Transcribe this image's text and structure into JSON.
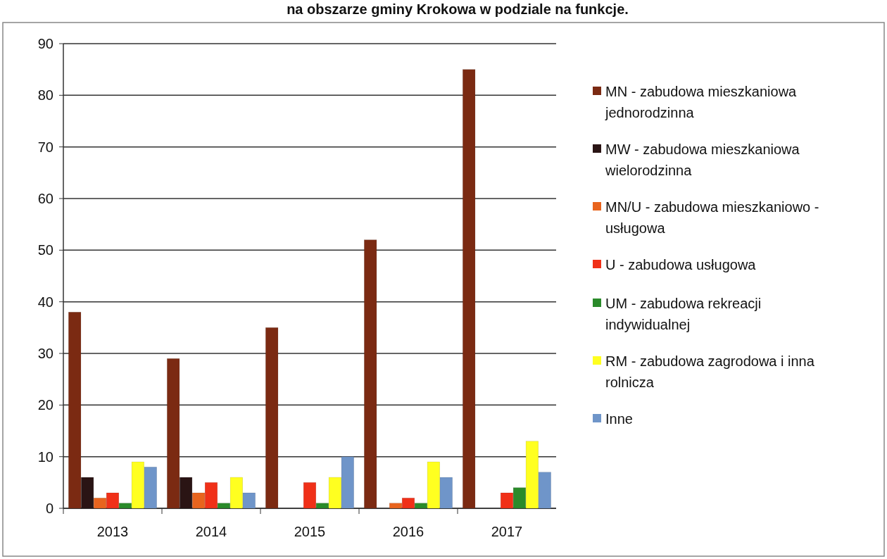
{
  "chart_data": {
    "type": "bar",
    "title": "na obszarze gminy Krokowa w podziale na funkcje.",
    "categories": [
      "2013",
      "2014",
      "2015",
      "2016",
      "2017"
    ],
    "series": [
      {
        "name": "MN - zabudowa mieszkaniowa jednorodzinna",
        "color": "#7b2a12",
        "values": [
          38,
          29,
          35,
          52,
          85
        ]
      },
      {
        "name": "MW - zabudowa mieszkaniowa wielorodzinna",
        "color": "#2a1414",
        "values": [
          6,
          6,
          0,
          0,
          0
        ]
      },
      {
        "name": "MN/U - zabudowa mieszkaniowo - usługowa",
        "color": "#e8641e",
        "values": [
          2,
          3,
          0,
          1,
          0
        ]
      },
      {
        "name": "U - zabudowa usługowa",
        "color": "#f03018",
        "values": [
          3,
          5,
          5,
          2,
          3
        ]
      },
      {
        "name": "UM - zabudowa rekreacji indywidualnej",
        "color": "#2a8a2a",
        "values": [
          1,
          1,
          1,
          1,
          4
        ]
      },
      {
        "name": "RM - zabudowa zagrodowa i inna rolnicza",
        "color": "#ffff20",
        "values": [
          9,
          6,
          6,
          9,
          13
        ]
      },
      {
        "name": "Inne",
        "color": "#6f95c9",
        "values": [
          8,
          3,
          10,
          6,
          7
        ]
      }
    ],
    "ylim": [
      0,
      90
    ],
    "yticks": [
      0,
      10,
      20,
      30,
      40,
      50,
      60,
      70,
      80,
      90
    ],
    "grid": "y",
    "legend": "right"
  }
}
